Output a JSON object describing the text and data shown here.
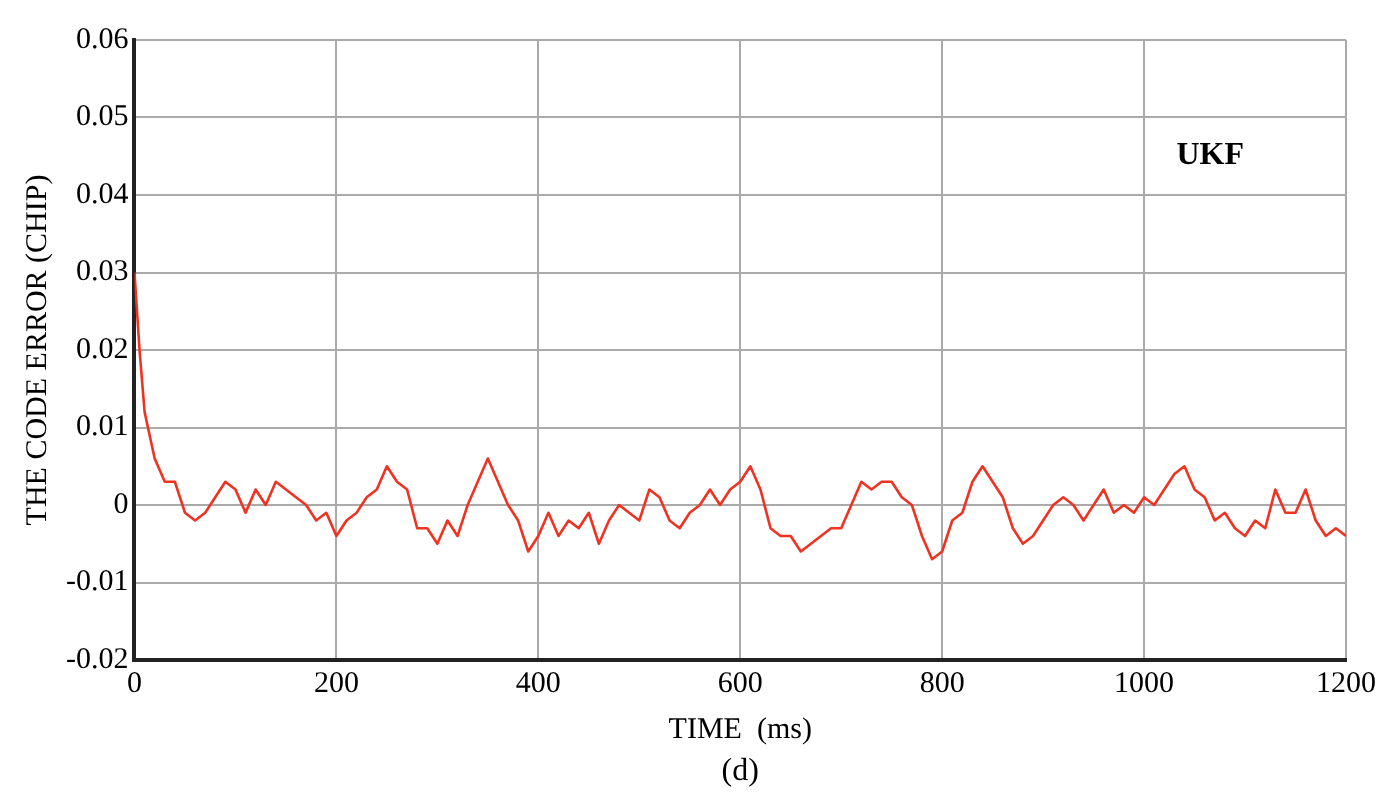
{
  "chart_data": {
    "type": "line",
    "xlabel": "TIME  (ms)",
    "ylabel": "THE CODE ERROR (CHIP)",
    "annotations": [
      "(d)"
    ],
    "x": [
      0,
      5,
      10,
      20,
      30,
      40,
      50,
      60,
      70,
      80,
      90,
      100,
      110,
      120,
      130,
      140,
      150,
      160,
      170,
      180,
      190,
      200,
      210,
      220,
      230,
      240,
      250,
      260,
      270,
      280,
      290,
      300,
      310,
      320,
      330,
      340,
      350,
      360,
      370,
      380,
      390,
      400,
      410,
      420,
      430,
      440,
      450,
      460,
      470,
      480,
      490,
      500,
      510,
      520,
      530,
      540,
      550,
      560,
      570,
      580,
      590,
      600,
      610,
      620,
      630,
      640,
      650,
      660,
      670,
      680,
      690,
      700,
      710,
      720,
      730,
      740,
      750,
      760,
      770,
      780,
      790,
      800,
      810,
      820,
      830,
      840,
      850,
      860,
      870,
      880,
      890,
      900,
      910,
      920,
      930,
      940,
      950,
      960,
      970,
      980,
      990,
      1000,
      1010,
      1020,
      1030,
      1040,
      1050,
      1060,
      1070,
      1080,
      1090,
      1100,
      1110,
      1120,
      1130,
      1140,
      1150,
      1160,
      1170,
      1180,
      1190,
      1200
    ],
    "series": [
      {
        "name": "UKF",
        "color": "#ee3322",
        "values": [
          0.03,
          0.02,
          0.012,
          0.006,
          0.003,
          0.003,
          -0.001,
          -0.002,
          -0.001,
          0.001,
          0.003,
          0.002,
          -0.001,
          0.002,
          0.0,
          0.003,
          0.002,
          0.001,
          0.0,
          -0.002,
          -0.001,
          -0.004,
          -0.002,
          -0.001,
          0.001,
          0.002,
          0.005,
          0.003,
          0.002,
          -0.003,
          -0.003,
          -0.005,
          -0.002,
          -0.004,
          0.0,
          0.003,
          0.006,
          0.003,
          0.0,
          -0.002,
          -0.006,
          -0.004,
          -0.001,
          -0.004,
          -0.002,
          -0.003,
          -0.001,
          -0.005,
          -0.002,
          0.0,
          -0.001,
          -0.002,
          0.002,
          0.001,
          -0.002,
          -0.003,
          -0.001,
          0.0,
          0.002,
          0.0,
          0.002,
          0.003,
          0.005,
          0.002,
          -0.003,
          -0.004,
          -0.004,
          -0.006,
          -0.005,
          -0.004,
          -0.003,
          -0.003,
          0.0,
          0.003,
          0.002,
          0.003,
          0.003,
          0.001,
          0.0,
          -0.004,
          -0.007,
          -0.006,
          -0.002,
          -0.001,
          0.003,
          0.005,
          0.003,
          0.001,
          -0.003,
          -0.005,
          -0.004,
          -0.002,
          0.0,
          0.001,
          0.0,
          -0.002,
          0.0,
          0.002,
          -0.001,
          0.0,
          -0.001,
          0.001,
          0.0,
          0.002,
          0.004,
          0.005,
          0.002,
          0.001,
          -0.002,
          -0.001,
          -0.003,
          -0.004,
          -0.002,
          -0.003,
          0.002,
          -0.001,
          -0.001,
          0.002,
          -0.002,
          -0.004,
          -0.003,
          -0.004
        ]
      }
    ],
    "xlim": [
      0,
      1200
    ],
    "xticks": [
      0,
      200,
      400,
      600,
      800,
      1000,
      1200
    ],
    "ylim": [
      -0.02,
      0.06
    ],
    "yticks": [
      -0.02,
      -0.01,
      0,
      0.01,
      0.02,
      0.03,
      0.04,
      0.05,
      0.06
    ],
    "grid": true,
    "legend": false,
    "marker": "none",
    "line_style": "solid"
  }
}
